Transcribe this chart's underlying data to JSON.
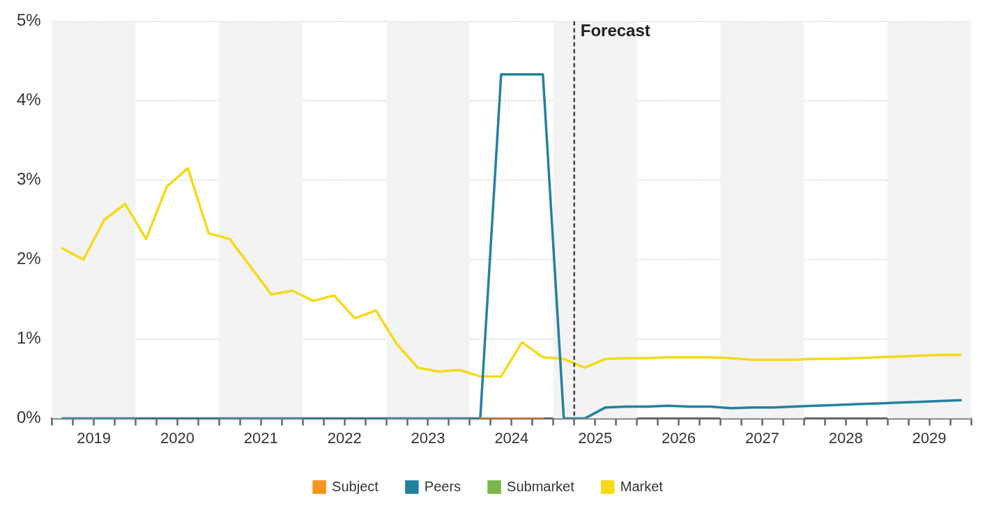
{
  "chart_data": {
    "type": "line",
    "x": [
      2019.125,
      2019.375,
      2019.625,
      2019.875,
      2020.125,
      2020.375,
      2020.625,
      2020.875,
      2021.125,
      2021.375,
      2021.625,
      2021.875,
      2022.125,
      2022.375,
      2022.625,
      2022.875,
      2023.125,
      2023.375,
      2023.625,
      2023.875,
      2024.125,
      2024.375,
      2024.625,
      2024.875,
      2025.125,
      2025.375,
      2025.625,
      2025.875,
      2026.125,
      2026.375,
      2026.625,
      2026.875,
      2027.125,
      2027.375,
      2027.625,
      2027.875,
      2028.125,
      2028.375,
      2028.625,
      2028.875,
      2029.125,
      2029.375,
      2029.625,
      2029.875
    ],
    "series": [
      {
        "name": "Subject",
        "color": "#f7941d",
        "values": [
          null,
          null,
          null,
          null,
          null,
          null,
          null,
          null,
          null,
          null,
          null,
          null,
          null,
          null,
          null,
          null,
          null,
          null,
          null,
          null,
          0,
          0,
          0,
          0,
          null,
          null,
          null,
          null,
          null,
          null,
          null,
          null,
          null,
          null,
          null,
          null,
          null,
          null,
          null,
          null,
          null,
          null,
          null,
          null
        ]
      },
      {
        "name": "Peers",
        "color": "#2381a0",
        "values": [
          0,
          0,
          0,
          0,
          0,
          0,
          0,
          0,
          0,
          0,
          0,
          0,
          0,
          0,
          0,
          0,
          0,
          0,
          0,
          0,
          0,
          4.33,
          4.33,
          4.33,
          0,
          0,
          0.14,
          0.15,
          0.15,
          0.16,
          0.15,
          0.15,
          0.13,
          0.14,
          0.14,
          0.15,
          0.16,
          0.17,
          0.18,
          0.19,
          0.2,
          0.21,
          0.22,
          0.23
        ]
      },
      {
        "name": "Submarket",
        "color": "#7ab648",
        "values": [
          null,
          null,
          null,
          null,
          null,
          null,
          null,
          null,
          null,
          null,
          null,
          null,
          null,
          null,
          null,
          null,
          null,
          null,
          null,
          null,
          null,
          null,
          null,
          null,
          null,
          null,
          null,
          null,
          null,
          null,
          null,
          null,
          null,
          null,
          null,
          null,
          null,
          null,
          null,
          null,
          null,
          null,
          null,
          null
        ]
      },
      {
        "name": "Market",
        "color": "#f7d917",
        "values": [
          2.14,
          2.0,
          2.5,
          2.7,
          2.26,
          2.92,
          3.15,
          2.33,
          2.26,
          1.91,
          1.56,
          1.61,
          1.48,
          1.55,
          1.26,
          1.36,
          0.94,
          0.64,
          0.59,
          0.61,
          0.53,
          0.53,
          0.96,
          0.77,
          0.75,
          0.64,
          0.75,
          0.76,
          0.76,
          0.77,
          0.77,
          0.77,
          0.76,
          0.74,
          0.74,
          0.74,
          0.75,
          0.75,
          0.76,
          0.77,
          0.78,
          0.79,
          0.8,
          0.8
        ]
      }
    ],
    "xlim": [
      2019,
      2030
    ],
    "xticks": [
      {
        "value": 2019,
        "label": null
      },
      {
        "value": 2019.25,
        "label": null
      },
      {
        "value": 2019.5,
        "label": "2019"
      },
      {
        "value": 2019.75,
        "label": null
      },
      {
        "value": 2020,
        "label": null
      },
      {
        "value": 2020.25,
        "label": null
      },
      {
        "value": 2020.5,
        "label": "2020"
      },
      {
        "value": 2020.75,
        "label": null
      },
      {
        "value": 2021,
        "label": null
      },
      {
        "value": 2021.25,
        "label": null
      },
      {
        "value": 2021.5,
        "label": "2021"
      },
      {
        "value": 2021.75,
        "label": null
      },
      {
        "value": 2022,
        "label": null
      },
      {
        "value": 2022.25,
        "label": null
      },
      {
        "value": 2022.5,
        "label": "2022"
      },
      {
        "value": 2022.75,
        "label": null
      },
      {
        "value": 2023,
        "label": null
      },
      {
        "value": 2023.25,
        "label": null
      },
      {
        "value": 2023.5,
        "label": "2023"
      },
      {
        "value": 2023.75,
        "label": null
      },
      {
        "value": 2024,
        "label": null
      },
      {
        "value": 2024.25,
        "label": null
      },
      {
        "value": 2024.5,
        "label": "2024"
      },
      {
        "value": 2024.75,
        "label": null
      },
      {
        "value": 2025,
        "label": null
      },
      {
        "value": 2025.25,
        "label": null
      },
      {
        "value": 2025.5,
        "label": "2025"
      },
      {
        "value": 2025.75,
        "label": null
      },
      {
        "value": 2026,
        "label": null
      },
      {
        "value": 2026.25,
        "label": null
      },
      {
        "value": 2026.5,
        "label": "2026"
      },
      {
        "value": 2026.75,
        "label": null
      },
      {
        "value": 2027,
        "label": null
      },
      {
        "value": 2027.25,
        "label": null
      },
      {
        "value": 2027.5,
        "label": "2027"
      },
      {
        "value": 2027.75,
        "label": null
      },
      {
        "value": 2028,
        "label": null
      },
      {
        "value": 2028.25,
        "label": null
      },
      {
        "value": 2028.5,
        "label": "2028"
      },
      {
        "value": 2028.75,
        "label": null
      },
      {
        "value": 2029,
        "label": null
      },
      {
        "value": 2029.25,
        "label": null
      },
      {
        "value": 2029.5,
        "label": "2029"
      },
      {
        "value": 2029.75,
        "label": null
      },
      {
        "value": 2030,
        "label": null
      }
    ],
    "ylim": [
      0,
      5
    ],
    "yticks": [
      {
        "value": 0,
        "label": "0%"
      },
      {
        "value": 1,
        "label": "1%"
      },
      {
        "value": 2,
        "label": "2%"
      },
      {
        "value": 3,
        "label": "3%"
      },
      {
        "value": 4,
        "label": "4%"
      },
      {
        "value": 5,
        "label": "5%"
      }
    ],
    "grid": "y",
    "legend": "bottom",
    "marker": "none",
    "line_style": "solid",
    "ref_lines": [
      {
        "axis": "x",
        "value": 2025.25,
        "label": "Forecast",
        "color": "#444444",
        "line_style": "dashed"
      }
    ],
    "bands": [
      {
        "axis": "x",
        "from": 2019,
        "to": 2020,
        "color": "#f3f3f3"
      },
      {
        "axis": "x",
        "from": 2021,
        "to": 2022,
        "color": "#f3f3f3"
      },
      {
        "axis": "x",
        "from": 2023,
        "to": 2024,
        "color": "#f3f3f3"
      },
      {
        "axis": "x",
        "from": 2025,
        "to": 2026,
        "color": "#f3f3f3"
      },
      {
        "axis": "x",
        "from": 2027,
        "to": 2028,
        "color": "#f3f3f3"
      },
      {
        "axis": "x",
        "from": 2029,
        "to": 2030,
        "color": "#f3f3f3"
      }
    ]
  }
}
